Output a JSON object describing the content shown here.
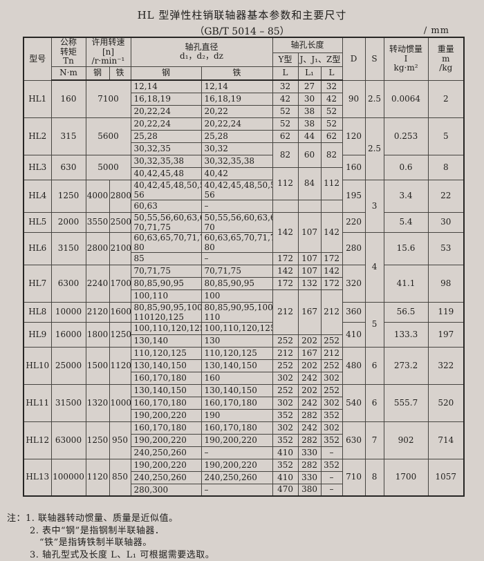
{
  "title": "HL 型弹性柱销联轴器基本参数和主要尺寸",
  "subtitle": "（GB/T 5014 – 85）",
  "unit": "/ mm",
  "header": {
    "model": "型号",
    "torque": "公称\n转矩\nTn",
    "torque_unit": "N·m",
    "speed": "许用转速\n[n]\n/r·min⁻¹",
    "steel": "钢",
    "iron": "铁",
    "bore_diameter": "轴孔直径\nd₁，d₂，dz",
    "bore_length": "轴孔长度",
    "y_type": "Y型",
    "jz_type": "J、J₁、Z型",
    "L": "L",
    "L1": "L₁",
    "D": "D",
    "S": "S",
    "inertia": "转动惯量\nI\nkg·m²",
    "mass": "重量\nm\n/kg"
  },
  "table": {
    "group_starts": [
      0,
      3,
      6,
      8,
      10,
      11,
      13,
      16,
      17,
      19,
      22,
      25,
      28
    ],
    "rows": [
      [
        {
          "t": "HL1",
          "rs": 3,
          "n": "model-cell"
        },
        {
          "t": "160",
          "rs": 3
        },
        {
          "t": "7100",
          "cs": 2,
          "rs": 3
        },
        {
          "t": "12,14",
          "k": "dia"
        },
        {
          "t": "12,14",
          "k": "dia"
        },
        {
          "t": "32"
        },
        {
          "t": "27"
        },
        {
          "t": "32"
        },
        {
          "t": "90",
          "rs": 3
        },
        {
          "t": "2.5",
          "rs": 3
        },
        {
          "t": "0.0064",
          "rs": 3
        },
        {
          "t": "2",
          "rs": 3
        }
      ],
      [
        {
          "t": "16,18,19",
          "k": "dia"
        },
        {
          "t": "16,18,19",
          "k": "dia"
        },
        {
          "t": "42"
        },
        {
          "t": "30"
        },
        {
          "t": "42"
        }
      ],
      [
        {
          "t": "20,22,24",
          "k": "dia"
        },
        {
          "t": "20,22",
          "k": "dia"
        },
        {
          "t": "52"
        },
        {
          "t": "38"
        },
        {
          "t": "52"
        }
      ],
      [
        {
          "t": "HL2",
          "rs": 3,
          "n": "model-cell"
        },
        {
          "t": "315",
          "rs": 3
        },
        {
          "t": "5600",
          "cs": 2,
          "rs": 3
        },
        {
          "t": "20,22,24",
          "k": "dia"
        },
        {
          "t": "20,22,24",
          "k": "dia"
        },
        {
          "t": "52"
        },
        {
          "t": "38"
        },
        {
          "t": "52"
        },
        {
          "t": "120",
          "rs": 3
        },
        {
          "t": "2.5",
          "rs": 5
        },
        {
          "t": "0.253",
          "rs": 3
        },
        {
          "t": "5",
          "rs": 3
        }
      ],
      [
        {
          "t": "25,28",
          "k": "dia"
        },
        {
          "t": "25,28",
          "k": "dia"
        },
        {
          "t": "62"
        },
        {
          "t": "44"
        },
        {
          "t": "62"
        }
      ],
      [
        {
          "t": "30,32,35",
          "k": "dia"
        },
        {
          "t": "30,32",
          "k": "dia"
        },
        {
          "t": "82",
          "rs": 2
        },
        {
          "t": "60",
          "rs": 2
        },
        {
          "t": "82",
          "rs": 2
        }
      ],
      [
        {
          "t": "HL3",
          "rs": 2,
          "n": "model-cell"
        },
        {
          "t": "630",
          "rs": 2
        },
        {
          "t": "5000",
          "cs": 2,
          "rs": 2
        },
        {
          "t": "30,32,35,38",
          "k": "dia"
        },
        {
          "t": "30,32,35,38",
          "k": "dia"
        },
        {
          "t": "160",
          "rs": 2
        },
        {
          "t": "0.6",
          "rs": 2
        },
        {
          "t": "8",
          "rs": 2
        }
      ],
      [
        {
          "t": "40,42,45,48",
          "k": "dia"
        },
        {
          "t": "40,42",
          "k": "dia"
        },
        {
          "t": "112",
          "rs": 2
        },
        {
          "t": "84",
          "rs": 2
        },
        {
          "t": "112",
          "rs": 2
        }
      ],
      [
        {
          "t": "HL4",
          "rs": 2,
          "n": "model-cell"
        },
        {
          "t": "1250",
          "rs": 2
        },
        {
          "t": "4000",
          "rs": 2
        },
        {
          "t": "2800",
          "rs": 2
        },
        {
          "t": "40,42,45,48,50,55,\n56",
          "k": "dia"
        },
        {
          "t": "40,42,45,48,50,55,\n56",
          "k": "dia"
        },
        {
          "t": "195",
          "rs": 2
        },
        {
          "t": "3",
          "rs": 3
        },
        {
          "t": "3.4",
          "rs": 2
        },
        {
          "t": "22",
          "rs": 2
        }
      ],
      [
        {
          "t": "60,63",
          "k": "dia"
        },
        {
          "t": "–",
          "k": "dia"
        },
        {
          "t": ""
        },
        {
          "t": ""
        },
        {
          "t": ""
        }
      ],
      [
        {
          "t": "HL5",
          "n": "model-cell"
        },
        {
          "t": "2000"
        },
        {
          "t": "3550"
        },
        {
          "t": "2500"
        },
        {
          "t": "50,55,56,60,63,65,\n70,71,75",
          "k": "dia"
        },
        {
          "t": "50,55,56,60,63,65,\n70",
          "k": "dia"
        },
        {
          "t": "142",
          "rs": 2
        },
        {
          "t": "107",
          "rs": 2
        },
        {
          "t": "142",
          "rs": 2
        },
        {
          "t": "220"
        },
        {
          "t": "5.4"
        },
        {
          "t": "30"
        }
      ],
      [
        {
          "t": "HL6",
          "rs": 2,
          "n": "model-cell"
        },
        {
          "t": "3150",
          "rs": 2
        },
        {
          "t": "2800",
          "rs": 2
        },
        {
          "t": "2100",
          "rs": 2
        },
        {
          "t": "60,63,65,70,71,75,\n80",
          "k": "dia"
        },
        {
          "t": "60,63,65,70,71,75,\n80",
          "k": "dia"
        },
        {
          "t": "280",
          "rs": 2
        },
        {
          "t": "4",
          "rs": 5
        },
        {
          "t": "15.6",
          "rs": 2
        },
        {
          "t": "53",
          "rs": 2
        }
      ],
      [
        {
          "t": "85",
          "k": "dia"
        },
        {
          "t": "–",
          "k": "dia"
        },
        {
          "t": "172"
        },
        {
          "t": "107"
        },
        {
          "t": "172"
        }
      ],
      [
        {
          "t": "HL7",
          "rs": 3,
          "n": "model-cell"
        },
        {
          "t": "6300",
          "rs": 3
        },
        {
          "t": "2240",
          "rs": 3
        },
        {
          "t": "1700",
          "rs": 3
        },
        {
          "t": "70,71,75",
          "k": "dia"
        },
        {
          "t": "70,71,75",
          "k": "dia"
        },
        {
          "t": "142"
        },
        {
          "t": "107"
        },
        {
          "t": "142"
        },
        {
          "t": "320",
          "rs": 3
        },
        {
          "t": "41.1",
          "rs": 3
        },
        {
          "t": "98",
          "rs": 3
        }
      ],
      [
        {
          "t": "80,85,90,95",
          "k": "dia"
        },
        {
          "t": "80,85,90,95",
          "k": "dia"
        },
        {
          "t": "172"
        },
        {
          "t": "132"
        },
        {
          "t": "172"
        }
      ],
      [
        {
          "t": "100,110",
          "k": "dia"
        },
        {
          "t": "100",
          "k": "dia"
        },
        {
          "t": "212",
          "rs": 3
        },
        {
          "t": "167",
          "rs": 3
        },
        {
          "t": "212",
          "rs": 3
        }
      ],
      [
        {
          "t": "HL8",
          "n": "model-cell"
        },
        {
          "t": "10000"
        },
        {
          "t": "2120"
        },
        {
          "t": "1600"
        },
        {
          "t": "80,85,90,95,100,\n110120,125",
          "k": "dia"
        },
        {
          "t": "80,85,90,95,100,\n110",
          "k": "dia"
        },
        {
          "t": "360"
        },
        {
          "t": "5",
          "rs": 3
        },
        {
          "t": "56.5"
        },
        {
          "t": "119"
        }
      ],
      [
        {
          "t": "HL9",
          "rs": 2,
          "n": "model-cell"
        },
        {
          "t": "16000",
          "rs": 2
        },
        {
          "t": "1800",
          "rs": 2
        },
        {
          "t": "1250",
          "rs": 2
        },
        {
          "t": "100,110,120,125",
          "k": "dia"
        },
        {
          "t": "100,110,120,125",
          "k": "dia"
        },
        {
          "t": "410",
          "rs": 2
        },
        {
          "t": "133.3",
          "rs": 2
        },
        {
          "t": "197",
          "rs": 2
        }
      ],
      [
        {
          "t": "130,140",
          "k": "dia"
        },
        {
          "t": "130",
          "k": "dia"
        },
        {
          "t": "252"
        },
        {
          "t": "202"
        },
        {
          "t": "252"
        }
      ],
      [
        {
          "t": "HL10",
          "rs": 3,
          "n": "model-cell"
        },
        {
          "t": "25000",
          "rs": 3
        },
        {
          "t": "1500",
          "rs": 3
        },
        {
          "t": "1120",
          "rs": 3
        },
        {
          "t": "110,120,125",
          "k": "dia"
        },
        {
          "t": "110,120,125",
          "k": "dia"
        },
        {
          "t": "212"
        },
        {
          "t": "167"
        },
        {
          "t": "212"
        },
        {
          "t": "480",
          "rs": 3
        },
        {
          "t": "6",
          "rs": 3
        },
        {
          "t": "273.2",
          "rs": 3
        },
        {
          "t": "322",
          "rs": 3
        }
      ],
      [
        {
          "t": "130,140,150",
          "k": "dia"
        },
        {
          "t": "130,140,150",
          "k": "dia"
        },
        {
          "t": "252"
        },
        {
          "t": "202"
        },
        {
          "t": "252"
        }
      ],
      [
        {
          "t": "160,170,180",
          "k": "dia"
        },
        {
          "t": "160",
          "k": "dia"
        },
        {
          "t": "302"
        },
        {
          "t": "242"
        },
        {
          "t": "302"
        }
      ],
      [
        {
          "t": "HL11",
          "rs": 3,
          "n": "model-cell"
        },
        {
          "t": "31500",
          "rs": 3
        },
        {
          "t": "1320",
          "rs": 3
        },
        {
          "t": "1000",
          "rs": 3
        },
        {
          "t": "130,140,150",
          "k": "dia"
        },
        {
          "t": "130,140,150",
          "k": "dia"
        },
        {
          "t": "252"
        },
        {
          "t": "202"
        },
        {
          "t": "252"
        },
        {
          "t": "540",
          "rs": 3
        },
        {
          "t": "6",
          "rs": 3
        },
        {
          "t": "555.7",
          "rs": 3
        },
        {
          "t": "520",
          "rs": 3
        }
      ],
      [
        {
          "t": "160,170,180",
          "k": "dia"
        },
        {
          "t": "160,170,180",
          "k": "dia"
        },
        {
          "t": "302"
        },
        {
          "t": "242"
        },
        {
          "t": "302"
        }
      ],
      [
        {
          "t": "190,200,220",
          "k": "dia"
        },
        {
          "t": "190",
          "k": "dia"
        },
        {
          "t": "352"
        },
        {
          "t": "282"
        },
        {
          "t": "352"
        }
      ],
      [
        {
          "t": "HL12",
          "rs": 3,
          "n": "model-cell"
        },
        {
          "t": "63000",
          "rs": 3
        },
        {
          "t": "1250",
          "rs": 3
        },
        {
          "t": "950",
          "rs": 3
        },
        {
          "t": "160,170,180",
          "k": "dia"
        },
        {
          "t": "160,170,180",
          "k": "dia"
        },
        {
          "t": "302"
        },
        {
          "t": "242"
        },
        {
          "t": "302"
        },
        {
          "t": "630",
          "rs": 3
        },
        {
          "t": "7",
          "rs": 3
        },
        {
          "t": "902",
          "rs": 3
        },
        {
          "t": "714",
          "rs": 3
        }
      ],
      [
        {
          "t": "190,200,220",
          "k": "dia"
        },
        {
          "t": "190,200,220",
          "k": "dia"
        },
        {
          "t": "352"
        },
        {
          "t": "282"
        },
        {
          "t": "352"
        }
      ],
      [
        {
          "t": "240,250,260",
          "k": "dia"
        },
        {
          "t": "–",
          "k": "dia"
        },
        {
          "t": "410"
        },
        {
          "t": "330"
        },
        {
          "t": "–"
        }
      ],
      [
        {
          "t": "HL13",
          "rs": 3,
          "n": "model-cell"
        },
        {
          "t": "100000",
          "rs": 3
        },
        {
          "t": "1120",
          "rs": 3
        },
        {
          "t": "850",
          "rs": 3
        },
        {
          "t": "190,200,220",
          "k": "dia"
        },
        {
          "t": "190,200,220",
          "k": "dia"
        },
        {
          "t": "352"
        },
        {
          "t": "282"
        },
        {
          "t": "352"
        },
        {
          "t": "710",
          "rs": 3
        },
        {
          "t": "8",
          "rs": 3
        },
        {
          "t": "1700",
          "rs": 3
        },
        {
          "t": "1057",
          "rs": 3
        }
      ],
      [
        {
          "t": "240,250,260",
          "k": "dia"
        },
        {
          "t": "240,250,260",
          "k": "dia"
        },
        {
          "t": "410"
        },
        {
          "t": "330"
        },
        {
          "t": "–"
        }
      ],
      [
        {
          "t": "280,300",
          "k": "dia"
        },
        {
          "t": "–",
          "k": "dia"
        },
        {
          "t": "470"
        },
        {
          "t": "380"
        },
        {
          "t": "–"
        }
      ]
    ]
  },
  "notes": [
    {
      "text": "注：1. 联轴器转动惯量、质量是近似值。"
    },
    {
      "text": "2. 表中“钢”是指钢制半联轴器．"
    },
    {
      "text": "“铁”是指铸铁制半联轴器。"
    },
    {
      "text": "3. 轴孔型式及长度 L、L₁ 可根据需要选取。"
    }
  ]
}
